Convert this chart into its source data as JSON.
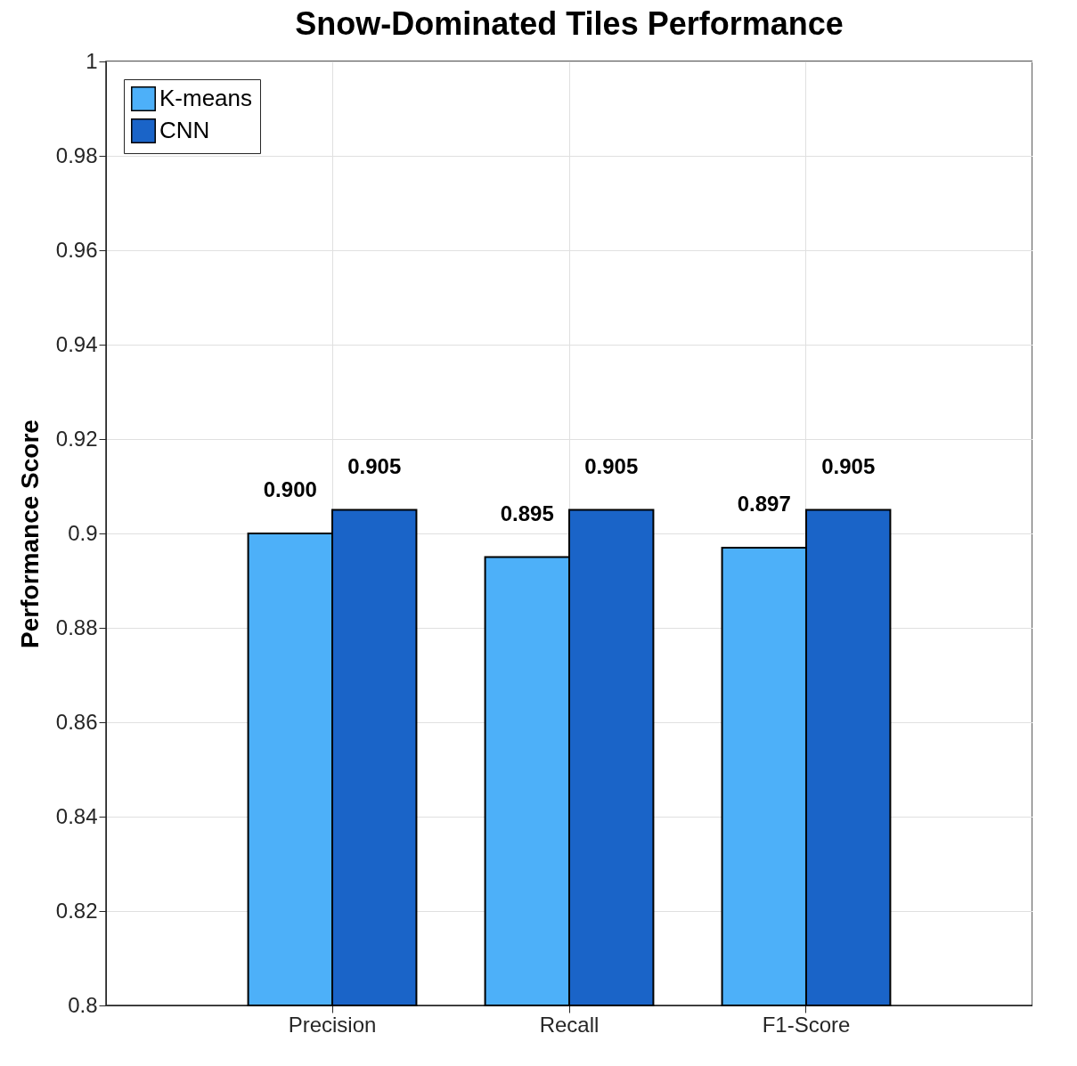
{
  "chart_data": {
    "type": "bar",
    "title": "Snow-Dominated Tiles Performance",
    "ylabel": "Performance Score",
    "categories": [
      "Precision",
      "Recall",
      "F1-Score"
    ],
    "series": [
      {
        "name": "K-means",
        "color": "#4db0f9",
        "values": [
          0.9,
          0.895,
          0.897
        ],
        "value_labels": [
          "0.900",
          "0.895",
          "0.897"
        ]
      },
      {
        "name": "CNN",
        "color": "#1a64c8",
        "values": [
          0.905,
          0.905,
          0.905
        ],
        "value_labels": [
          "0.905",
          "0.905",
          "0.905"
        ]
      }
    ],
    "ylim": [
      0.8,
      1
    ],
    "yticks": [
      0.8,
      0.82,
      0.84,
      0.86,
      0.88,
      0.9,
      0.92,
      0.94,
      0.96,
      0.98,
      1
    ],
    "grid": true,
    "legend": "top left"
  }
}
